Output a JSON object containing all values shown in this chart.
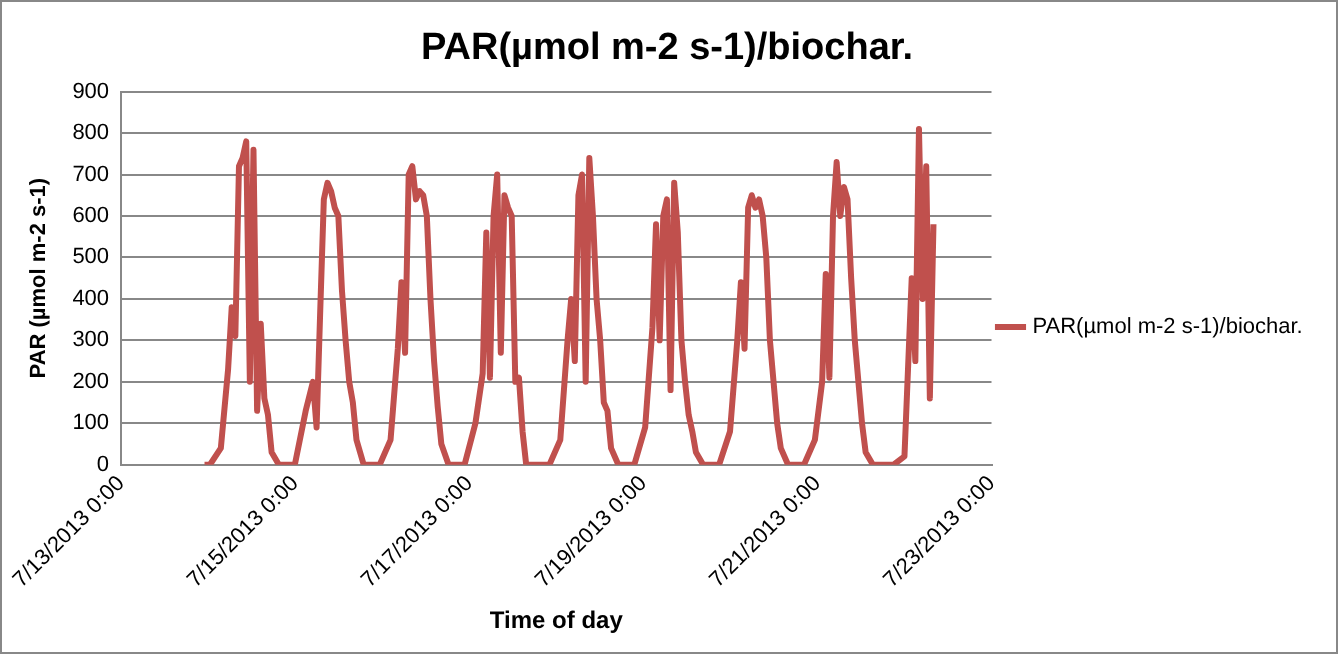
{
  "chart_data": {
    "type": "line",
    "title": "PAR(µmol m-2 s-1)/biochar.",
    "xlabel": "Time of day",
    "ylabel": "PAR (µmol m-2 s-1)",
    "series": [
      {
        "name": "PAR(µmol m-2 s-1)/biochar.",
        "color": "#c0504d",
        "x": [
          "2013-07-13T23:00",
          "2013-07-14T00:30",
          "2013-07-14T03:30",
          "2013-07-14T05:30",
          "2013-07-14T06:30",
          "2013-07-14T07:30",
          "2013-07-14T08:30",
          "2013-07-14T09:30",
          "2013-07-14T10:30",
          "2013-07-14T11:30",
          "2013-07-14T12:30",
          "2013-07-14T13:30",
          "2013-07-14T14:30",
          "2013-07-14T15:30",
          "2013-07-14T16:30",
          "2013-07-14T17:30",
          "2013-07-14T19:30",
          "2013-07-14T23:54",
          "2013-07-15T02:54",
          "2013-07-15T04:54",
          "2013-07-15T05:54",
          "2013-07-15T06:54",
          "2013-07-15T07:54",
          "2013-07-15T08:54",
          "2013-07-15T09:54",
          "2013-07-15T10:54",
          "2013-07-15T11:54",
          "2013-07-15T12:54",
          "2013-07-15T13:54",
          "2013-07-15T14:54",
          "2013-07-15T15:54",
          "2013-07-15T16:54",
          "2013-07-15T18:54",
          "2013-07-15T23:18",
          "2013-07-16T02:18",
          "2013-07-16T04:18",
          "2013-07-16T05:18",
          "2013-07-16T06:18",
          "2013-07-16T07:18",
          "2013-07-16T08:18",
          "2013-07-16T09:18",
          "2013-07-16T10:18",
          "2013-07-16T11:18",
          "2013-07-16T12:18",
          "2013-07-16T13:18",
          "2013-07-16T14:18",
          "2013-07-16T15:18",
          "2013-07-16T16:18",
          "2013-07-16T18:18",
          "2013-07-16T22:42",
          "2013-07-17T01:42",
          "2013-07-17T03:42",
          "2013-07-17T04:42",
          "2013-07-17T05:42",
          "2013-07-17T06:42",
          "2013-07-17T07:42",
          "2013-07-17T08:42",
          "2013-07-17T09:42",
          "2013-07-17T10:42",
          "2013-07-17T11:42",
          "2013-07-17T12:42",
          "2013-07-17T13:42",
          "2013-07-17T14:42",
          "2013-07-17T15:42",
          "2013-07-17T17:42",
          "2013-07-17T22:06",
          "2013-07-18T01:06",
          "2013-07-18T03:06",
          "2013-07-18T04:06",
          "2013-07-18T05:06",
          "2013-07-18T06:06",
          "2013-07-18T07:06",
          "2013-07-18T08:06",
          "2013-07-18T09:06",
          "2013-07-18T10:06",
          "2013-07-18T11:06",
          "2013-07-18T12:06",
          "2013-07-18T13:06",
          "2013-07-18T14:06",
          "2013-07-18T15:06",
          "2013-07-18T17:06",
          "2013-07-18T21:30",
          "2013-07-19T00:30",
          "2013-07-19T02:30",
          "2013-07-19T03:30",
          "2013-07-19T04:30",
          "2013-07-19T05:30",
          "2013-07-19T06:30",
          "2013-07-19T07:30",
          "2013-07-19T08:30",
          "2013-07-19T09:30",
          "2013-07-19T10:30",
          "2013-07-19T11:30",
          "2013-07-19T12:30",
          "2013-07-19T13:30",
          "2013-07-19T14:30",
          "2013-07-19T16:30",
          "2013-07-19T20:54",
          "2013-07-19T23:54",
          "2013-07-20T01:54",
          "2013-07-20T02:54",
          "2013-07-20T03:54",
          "2013-07-20T04:54",
          "2013-07-20T05:54",
          "2013-07-20T06:54",
          "2013-07-20T07:54",
          "2013-07-20T08:54",
          "2013-07-20T09:54",
          "2013-07-20T10:54",
          "2013-07-20T11:54",
          "2013-07-20T12:54",
          "2013-07-20T13:54",
          "2013-07-20T15:54",
          "2013-07-20T20:18",
          "2013-07-20T23:18",
          "2013-07-21T01:18",
          "2013-07-21T02:18",
          "2013-07-21T03:18",
          "2013-07-21T04:18",
          "2013-07-21T05:18",
          "2013-07-21T06:18",
          "2013-07-21T07:18",
          "2013-07-21T08:18",
          "2013-07-21T09:18",
          "2013-07-21T10:18",
          "2013-07-21T11:18",
          "2013-07-21T12:18",
          "2013-07-21T13:18",
          "2013-07-21T15:18",
          "2013-07-21T21:00",
          "2013-07-22T00:00",
          "2013-07-22T02:00",
          "2013-07-22T03:00",
          "2013-07-22T04:00",
          "2013-07-22T05:00",
          "2013-07-22T06:00",
          "2013-07-22T07:00",
          "2013-07-22T08:00"
        ],
        "values": [
          0,
          0,
          40,
          230,
          380,
          310,
          720,
          740,
          780,
          200,
          760,
          130,
          340,
          160,
          120,
          30,
          0,
          0,
          130,
          200,
          90,
          370,
          640,
          680,
          660,
          620,
          600,
          420,
          300,
          200,
          150,
          60,
          0,
          0,
          60,
          280,
          440,
          270,
          700,
          720,
          640,
          660,
          650,
          600,
          400,
          250,
          140,
          50,
          0,
          0,
          100,
          220,
          560,
          210,
          600,
          700,
          270,
          650,
          620,
          600,
          200,
          210,
          80,
          0,
          0,
          0,
          60,
          300,
          400,
          250,
          650,
          700,
          200,
          740,
          600,
          400,
          300,
          150,
          130,
          40,
          0,
          0,
          90,
          330,
          580,
          300,
          600,
          640,
          180,
          680,
          560,
          300,
          200,
          120,
          80,
          30,
          0,
          0,
          80,
          300,
          440,
          280,
          620,
          650,
          620,
          640,
          600,
          500,
          300,
          200,
          100,
          40,
          0,
          0,
          60,
          200,
          460,
          210,
          600,
          730,
          600,
          670,
          640,
          450,
          300,
          200,
          100,
          30,
          0,
          0,
          20,
          450,
          250,
          810,
          400,
          720,
          160,
          580
        ]
      }
    ],
    "xlim": [
      "2013-07-13T00:00",
      "2013-07-23T00:00"
    ],
    "xticks": [
      {
        "value": "2013-07-13T00:00",
        "label": "7/13/2013 0:00"
      },
      {
        "value": "2013-07-15T00:00",
        "label": "7/15/2013 0:00"
      },
      {
        "value": "2013-07-17T00:00",
        "label": "7/17/2013 0:00"
      },
      {
        "value": "2013-07-19T00:00",
        "label": "7/19/2013 0:00"
      },
      {
        "value": "2013-07-21T00:00",
        "label": "7/21/2013 0:00"
      },
      {
        "value": "2013-07-23T00:00",
        "label": "7/23/2013 0:00"
      }
    ],
    "ylim": [
      0,
      900
    ],
    "yticks": [
      0,
      100,
      200,
      300,
      400,
      500,
      600,
      700,
      800,
      900
    ],
    "grid": "y",
    "legend": "right",
    "marker": "none",
    "line_style": "solid"
  }
}
